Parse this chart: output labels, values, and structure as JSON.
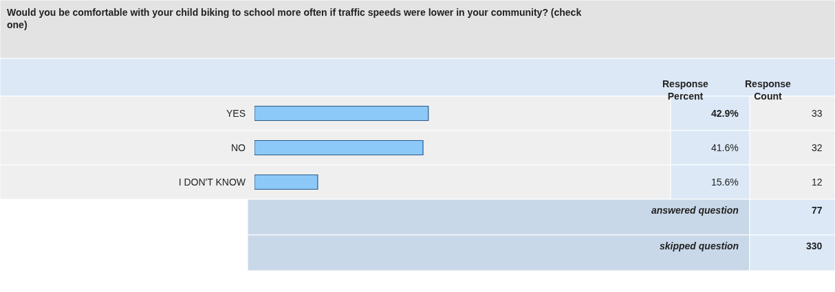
{
  "chart_data": {
    "type": "bar",
    "orientation": "horizontal",
    "title": "Would you be comfortable with your child biking to school more often if traffic speeds were lower in your community? (check one)",
    "categories": [
      "YES",
      "NO",
      "I DON'T KNOW"
    ],
    "values": [
      42.9,
      41.6,
      15.6
    ],
    "value_labels": [
      "42.9%",
      "41.6%",
      "15.6%"
    ],
    "color": "#8cc8f8",
    "tick_labels": "y",
    "grid": false,
    "annotations": [
      "Response Percent",
      "Response Count",
      "33",
      "32",
      "12",
      "answered question",
      "77",
      "skipped question",
      "330"
    ]
  }
}
